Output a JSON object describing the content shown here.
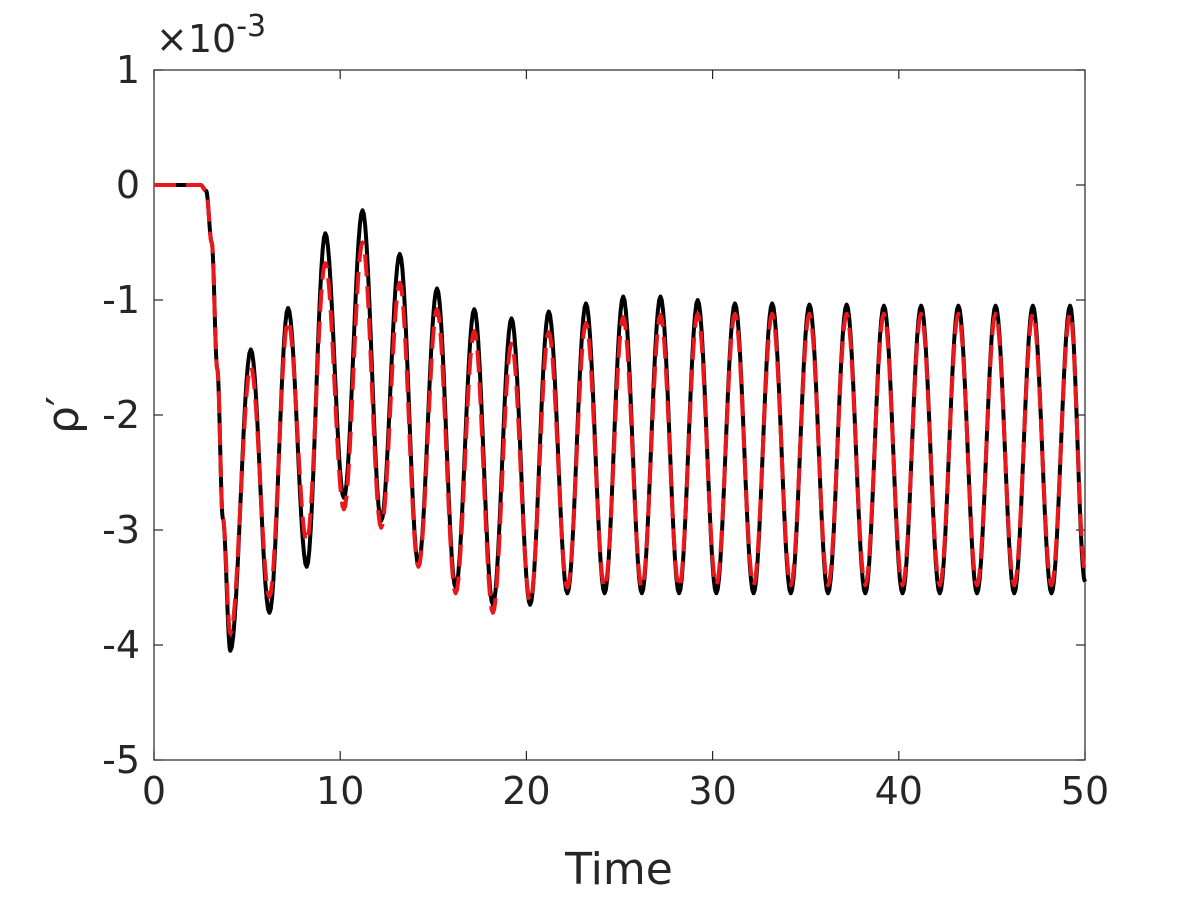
{
  "chart_data": {
    "type": "line",
    "xlabel": "Time",
    "ylabel": "ρ′",
    "y_exponent_label": "×10",
    "y_exponent_power": "-3",
    "xlim": [
      0,
      50
    ],
    "ylim": [
      -5,
      1
    ],
    "y_scale_factor": 0.001,
    "x_ticks": [
      0,
      10,
      20,
      30,
      40,
      50
    ],
    "x_tick_labels": [
      "0",
      "10",
      "20",
      "30",
      "40",
      "50"
    ],
    "y_ticks": [
      -5,
      -4,
      -3,
      -2,
      -1,
      0,
      1
    ],
    "y_tick_labels": [
      "-5",
      "-4",
      "-3",
      "-2",
      "-1",
      "0",
      "1"
    ],
    "grid": false,
    "legend": "none",
    "series": [
      {
        "color": "#000000",
        "style": "solid",
        "points": [
          [
            0,
            0
          ],
          [
            2.5,
            0
          ],
          [
            2.8,
            -0.05
          ],
          [
            3.1,
            -0.5
          ],
          [
            3.4,
            -1.6
          ],
          [
            3.7,
            -2.9
          ],
          [
            4.1,
            -4.05
          ],
          [
            5.2,
            -1.43
          ],
          [
            6.2,
            -3.72
          ],
          [
            7.2,
            -1.07
          ],
          [
            8.2,
            -3.32
          ],
          [
            9.2,
            -0.42
          ],
          [
            10.2,
            -2.72
          ],
          [
            11.2,
            -0.22
          ],
          [
            12.2,
            -2.92
          ],
          [
            13.2,
            -0.6
          ],
          [
            14.2,
            -3.3
          ],
          [
            15.2,
            -0.9
          ],
          [
            16.2,
            -3.5
          ],
          [
            17.2,
            -1.08
          ],
          [
            18.2,
            -3.65
          ],
          [
            19.2,
            -1.16
          ],
          [
            20.2,
            -3.65
          ],
          [
            21.2,
            -1.1
          ],
          [
            22.2,
            -3.55
          ],
          [
            23.2,
            -1.03
          ],
          [
            24.2,
            -3.55
          ],
          [
            25.2,
            -0.97
          ],
          [
            26.2,
            -3.55
          ],
          [
            27.2,
            -0.97
          ],
          [
            28.2,
            -3.55
          ],
          [
            29.2,
            -1.0
          ],
          [
            30.2,
            -3.55
          ],
          [
            31.2,
            -1.03
          ],
          [
            32.2,
            -3.55
          ],
          [
            33.2,
            -1.03
          ],
          [
            34.2,
            -3.55
          ],
          [
            35.2,
            -1.04
          ],
          [
            36.2,
            -3.55
          ],
          [
            37.2,
            -1.04
          ],
          [
            38.2,
            -3.55
          ],
          [
            39.2,
            -1.05
          ],
          [
            40.2,
            -3.55
          ],
          [
            41.2,
            -1.05
          ],
          [
            42.2,
            -3.55
          ],
          [
            43.2,
            -1.05
          ],
          [
            44.2,
            -3.55
          ],
          [
            45.2,
            -1.05
          ],
          [
            46.2,
            -3.55
          ],
          [
            47.2,
            -1.05
          ],
          [
            48.2,
            -3.55
          ],
          [
            49.2,
            -1.05
          ],
          [
            50,
            -3.45
          ]
        ]
      },
      {
        "color": "#e8181c",
        "style": "dashed",
        "points": [
          [
            0,
            0
          ],
          [
            2.5,
            0
          ],
          [
            2.8,
            -0.05
          ],
          [
            3.1,
            -0.5
          ],
          [
            3.4,
            -1.6
          ],
          [
            3.7,
            -2.9
          ],
          [
            4.1,
            -3.9
          ],
          [
            5.2,
            -1.58
          ],
          [
            6.2,
            -3.58
          ],
          [
            7.2,
            -1.18
          ],
          [
            8.2,
            -3.1
          ],
          [
            9.2,
            -0.68
          ],
          [
            10.2,
            -2.82
          ],
          [
            11.2,
            -0.5
          ],
          [
            12.2,
            -2.98
          ],
          [
            13.2,
            -0.85
          ],
          [
            14.2,
            -3.32
          ],
          [
            15.2,
            -1.08
          ],
          [
            16.2,
            -3.55
          ],
          [
            17.2,
            -1.27
          ],
          [
            18.2,
            -3.72
          ],
          [
            19.2,
            -1.38
          ],
          [
            20.2,
            -3.62
          ],
          [
            21.2,
            -1.28
          ],
          [
            22.2,
            -3.5
          ],
          [
            23.2,
            -1.2
          ],
          [
            24.2,
            -3.5
          ],
          [
            25.2,
            -1.15
          ],
          [
            26.2,
            -3.5
          ],
          [
            27.2,
            -1.13
          ],
          [
            28.2,
            -3.5
          ],
          [
            29.2,
            -1.12
          ],
          [
            30.2,
            -3.48
          ],
          [
            31.2,
            -1.12
          ],
          [
            32.2,
            -3.48
          ],
          [
            33.2,
            -1.12
          ],
          [
            34.2,
            -3.48
          ],
          [
            35.2,
            -1.12
          ],
          [
            36.2,
            -3.48
          ],
          [
            37.2,
            -1.12
          ],
          [
            38.2,
            -3.48
          ],
          [
            39.2,
            -1.12
          ],
          [
            40.2,
            -3.48
          ],
          [
            41.2,
            -1.12
          ],
          [
            42.2,
            -3.48
          ],
          [
            43.2,
            -1.12
          ],
          [
            44.2,
            -3.48
          ],
          [
            45.2,
            -1.12
          ],
          [
            46.2,
            -3.48
          ],
          [
            47.2,
            -1.12
          ],
          [
            48.2,
            -3.48
          ],
          [
            49.2,
            -1.12
          ],
          [
            50,
            -3.35
          ]
        ]
      }
    ]
  }
}
